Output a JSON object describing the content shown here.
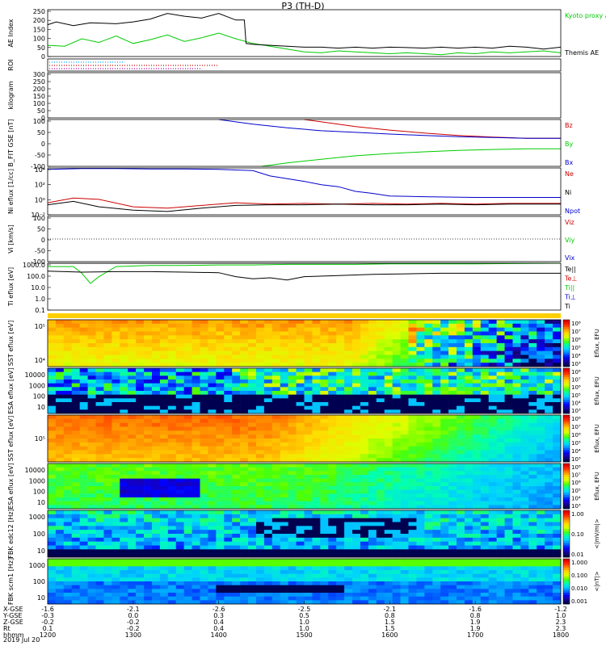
{
  "title": "P3 (TH-D)",
  "date_label": "2019 Jul 20",
  "chart_data": [
    {
      "type": "line",
      "ylabel": "AE Index",
      "ylim": [
        0,
        250
      ],
      "yticks": [
        "0",
        "50",
        "100",
        "150",
        "200",
        "250"
      ],
      "series": [
        {
          "name": "Kyoto proxy AE",
          "color": "#00cc00",
          "x": [
            1200,
            1220,
            1240,
            1260,
            1280,
            1300,
            1320,
            1340,
            1360,
            1380,
            1400,
            1420,
            1440,
            1460,
            1480,
            1500,
            1520,
            1540,
            1560,
            1580,
            1600,
            1620,
            1640,
            1660,
            1680,
            1700,
            1720,
            1740,
            1760,
            1780,
            1800
          ],
          "y": [
            60,
            55,
            95,
            75,
            110,
            70,
            90,
            115,
            80,
            100,
            125,
            95,
            70,
            55,
            40,
            25,
            20,
            30,
            25,
            20,
            15,
            20,
            15,
            10,
            20,
            15,
            25,
            20,
            25,
            30,
            20
          ]
        },
        {
          "name": "Themis AE",
          "color": "#000000",
          "x": [
            1200,
            1210,
            1230,
            1250,
            1280,
            1300,
            1320,
            1340,
            1360,
            1380,
            1400,
            1420,
            1430,
            1432,
            1440,
            1460,
            1480,
            1500,
            1520,
            1540,
            1560,
            1580,
            1600,
            1620,
            1640,
            1660,
            1680,
            1700,
            1720,
            1740,
            1760,
            1780,
            1800
          ],
          "y": [
            170,
            185,
            165,
            180,
            175,
            185,
            200,
            230,
            215,
            205,
            230,
            195,
            195,
            70,
            65,
            60,
            55,
            50,
            50,
            45,
            50,
            45,
            50,
            48,
            45,
            50,
            45,
            50,
            45,
            55,
            50,
            40,
            50
          ]
        }
      ]
    },
    {
      "type": "line",
      "ylabel": "ROI",
      "series": []
    },
    {
      "type": "line",
      "ylabel": "kilogram",
      "ylim": [
        0,
        300
      ],
      "yticks": [
        "0",
        "50",
        "100",
        "150",
        "200",
        "250",
        "300"
      ],
      "series": []
    },
    {
      "type": "line",
      "ylabel": "B_FIT GSE [nT]",
      "ylim": [
        -100,
        100
      ],
      "yticks": [
        "-100",
        "-50",
        "0",
        "50",
        "100"
      ],
      "series": [
        {
          "name": "Bz",
          "color": "#cc0000",
          "x": [
            1500,
            1520,
            1560,
            1600,
            1640,
            1680,
            1720,
            1760,
            1800
          ],
          "y": [
            100,
            90,
            70,
            55,
            42,
            32,
            25,
            20,
            20
          ]
        },
        {
          "name": "By",
          "color": "#00cc00",
          "x": [
            1450,
            1480,
            1520,
            1560,
            1600,
            1640,
            1680,
            1720,
            1760,
            1800
          ],
          "y": [
            -100,
            -85,
            -70,
            -55,
            -45,
            -38,
            -32,
            -28,
            -25,
            -25
          ]
        },
        {
          "name": "Bx",
          "color": "#0000cc",
          "x": [
            1400,
            1440,
            1480,
            1520,
            1560,
            1600,
            1640,
            1680,
            1720,
            1760,
            1800
          ],
          "y": [
            100,
            80,
            65,
            52,
            45,
            38,
            32,
            27,
            23,
            20,
            20
          ]
        }
      ]
    },
    {
      "type": "line",
      "ylabel": "Ni eflux [1/cc]",
      "ylim": [
        -2,
        5
      ],
      "yticks": [
        "10⁻²",
        "10⁰",
        "10²",
        "10⁴"
      ],
      "series": [
        {
          "name": "Ne",
          "color": "#cc0000",
          "x": [
            1200,
            1230,
            1260,
            1300,
            1340,
            1380,
            1420,
            1460,
            1500,
            1540,
            1580,
            1620,
            1660,
            1700,
            1740,
            1800
          ],
          "y": [
            -0.2,
            0.5,
            0.3,
            -0.8,
            -1.0,
            -0.6,
            -0.2,
            -0.4,
            -0.3,
            -0.4,
            -0.3,
            -0.4,
            -0.3,
            -0.4,
            -0.3,
            -0.3
          ]
        },
        {
          "name": "Ni",
          "color": "#000000",
          "x": [
            1200,
            1230,
            1260,
            1300,
            1340,
            1380,
            1420,
            1460,
            1500,
            1540,
            1580,
            1620,
            1660,
            1700,
            1740,
            1800
          ],
          "y": [
            -0.5,
            0.0,
            -0.8,
            -1.3,
            -1.5,
            -1.0,
            -0.6,
            -0.5,
            -0.5,
            -0.4,
            -0.5,
            -0.5,
            -0.4,
            -0.5,
            -0.4,
            -0.4
          ]
        },
        {
          "name": "Npot",
          "color": "#0000cc",
          "x": [
            1200,
            1240,
            1280,
            1320,
            1360,
            1400,
            1440,
            1460,
            1500,
            1520,
            1540,
            1560,
            1580,
            1600,
            1640,
            1700,
            1800
          ],
          "y": [
            4.8,
            4.9,
            4.9,
            4.85,
            4.85,
            4.8,
            4.6,
            3.8,
            3.0,
            2.5,
            2.2,
            1.5,
            1.2,
            0.8,
            0.7,
            0.6,
            0.6
          ]
        }
      ]
    },
    {
      "type": "line",
      "ylabel": "Vi [km/s]",
      "ylim": [
        -150,
        150
      ],
      "yticks": [
        "-100",
        "-50",
        "0",
        "50",
        "100"
      ],
      "series": [
        {
          "name": "Viz",
          "color": "#cc0000",
          "x": [],
          "y": []
        },
        {
          "name": "Viy",
          "color": "#00cc00",
          "x": [],
          "y": []
        },
        {
          "name": "Vix",
          "color": "#0000cc",
          "x": [],
          "y": []
        }
      ]
    },
    {
      "type": "line",
      "ylabel": "Ti eflux [eV]",
      "ylim": [
        -1,
        3.2
      ],
      "yticks": [
        "0.1",
        "1.0",
        "10.0",
        "100.0",
        "1000.0"
      ],
      "series": [
        {
          "name": "Te||",
          "color": "#000000",
          "x": [
            1200,
            1300,
            1400,
            1500,
            1600,
            1700,
            1800
          ],
          "y": [
            3.2,
            3.2,
            3.2,
            3.2,
            3.2,
            3.2,
            3.2
          ]
        },
        {
          "name": "Te⊥",
          "color": "#cc0000",
          "x": [],
          "y": []
        },
        {
          "name": "Ti||",
          "color": "#00cc00",
          "x": [
            1200,
            1230,
            1240,
            1250,
            1260,
            1280,
            1320,
            1360,
            1400,
            1440,
            1480,
            1520,
            1560,
            1600,
            1640,
            1700,
            1800
          ],
          "y": [
            2.9,
            2.9,
            2.3,
            1.4,
            2.0,
            2.9,
            3.0,
            3.0,
            3.05,
            3.05,
            3.1,
            3.1,
            3.1,
            3.15,
            3.15,
            3.15,
            3.2
          ]
        },
        {
          "name": "Ti⊥",
          "color": "#0000cc",
          "x": [],
          "y": []
        },
        {
          "name": "Ti",
          "color": "#000000",
          "x": [
            1200,
            1240,
            1280,
            1320,
            1360,
            1400,
            1420,
            1440,
            1460,
            1480,
            1500,
            1540,
            1580,
            1620,
            1660,
            1700,
            1800
          ],
          "y": [
            2.5,
            2.4,
            2.45,
            2.45,
            2.4,
            2.35,
            2.0,
            1.8,
            1.9,
            1.7,
            2.0,
            2.1,
            2.2,
            2.25,
            2.3,
            2.3,
            2.3
          ]
        }
      ]
    },
    {
      "type": "heatmap",
      "ylabel": "SST eflux [eV]",
      "yticks": [
        "10⁴",
        "10⁵"
      ],
      "colorbar": {
        "label": "Eflux, EFU",
        "ticks": [
          "10⁸",
          "10⁷",
          "10⁶",
          "10⁵",
          "10⁴",
          "10³"
        ]
      }
    },
    {
      "type": "heatmap",
      "ylabel": "ESA eflux [eV]",
      "yticks": [
        "10",
        "100",
        "1000",
        "10000"
      ],
      "colorbar": {
        "label": "Eflux, EFU",
        "ticks": [
          "10⁸",
          "10⁷",
          "10⁶",
          "10⁵",
          "10⁴",
          "10³"
        ]
      }
    },
    {
      "type": "heatmap",
      "ylabel": "SST eflux [eV]",
      "yticks": [
        "10⁵"
      ],
      "colorbar": {
        "label": "Eflux, EFU",
        "ticks": [
          "10⁸",
          "10⁷",
          "10⁶",
          "10⁵",
          "10⁴",
          "10³"
        ]
      }
    },
    {
      "type": "heatmap",
      "ylabel": "ESA eflux [eV]",
      "yticks": [
        "10",
        "100",
        "1000",
        "10000"
      ],
      "colorbar": {
        "label": "Eflux, EFU",
        "ticks": [
          "10⁸",
          "10⁷",
          "10⁶",
          "10⁵",
          "10⁴",
          "10³"
        ]
      }
    },
    {
      "type": "heatmap",
      "ylabel": "FBK edc12 [Hz]",
      "yticks": [
        "10",
        "100",
        "1000"
      ],
      "colorbar": {
        "label": "<|mV/m|>",
        "ticks": [
          "1.00",
          "0.10",
          "0.01"
        ]
      }
    },
    {
      "type": "heatmap",
      "ylabel": "FBK scm1 [Hz]",
      "yticks": [
        "10",
        "100",
        "1000"
      ],
      "colorbar": {
        "label": "<|nT|>",
        "ticks": [
          "1.000",
          "0.100",
          "0.010",
          "0.001"
        ]
      }
    }
  ],
  "time_axis": {
    "rows": [
      {
        "label": "X-GSE",
        "values": [
          "-1.6",
          "-2.1",
          "-2.6",
          "-2.5",
          "-2.1",
          "-1.6",
          "-1.2"
        ]
      },
      {
        "label": "Y-GSE",
        "values": [
          "-0.3",
          "0.0",
          "0.3",
          "0.5",
          "0.8",
          "0.8",
          "1.0"
        ]
      },
      {
        "label": "Z-GSE",
        "values": [
          "-0.2",
          "-0.2",
          "0.4",
          "1.0",
          "1.5",
          "1.9",
          "2.3"
        ]
      },
      {
        "label": "Rt",
        "values": [
          "0.1",
          "-0.2",
          "0.4",
          "1.0",
          "1.5",
          "1.9",
          "2.3"
        ]
      },
      {
        "label": "hhmm",
        "values": [
          "1200",
          "1300",
          "1400",
          "1500",
          "1600",
          "1700",
          "1800"
        ]
      }
    ]
  }
}
